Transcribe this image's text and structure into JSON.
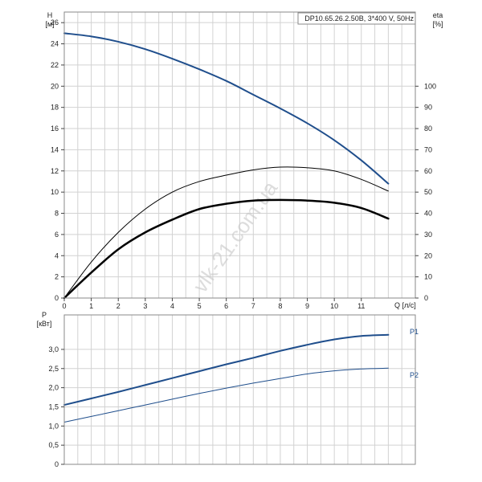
{
  "colors": {
    "blue": "#1f4e8c",
    "black": "#000000",
    "grid": "#d2d2d2"
  },
  "chart_data": [
    {
      "type": "line",
      "title": "DP10.65.26.2.50B, 3*400 V, 50Hz",
      "xlabel": "Q [л/с]",
      "x_ticks": [
        "0",
        "1",
        "2",
        "3",
        "4",
        "5",
        "6",
        "7",
        "8",
        "9",
        "10",
        "11"
      ],
      "xlim": [
        0,
        13
      ],
      "ylabel_left": {
        "name": "H",
        "unit": "[м]"
      },
      "ylim_left": [
        0,
        27
      ],
      "yticks_left": [
        "0",
        "2",
        "4",
        "6",
        "8",
        "10",
        "12",
        "14",
        "16",
        "18",
        "20",
        "22",
        "24",
        "26"
      ],
      "ylabel_right": {
        "name": "eta",
        "unit": "[%]"
      },
      "ylim_right": [
        0,
        135
      ],
      "yticks_right": [
        "0",
        "10",
        "20",
        "30",
        "40",
        "50",
        "60",
        "70",
        "80",
        "90",
        "100"
      ],
      "grid": true,
      "series": [
        {
          "axis": "left",
          "color": "#1f4e8c",
          "width": 2,
          "x": [
            0,
            1,
            2,
            3,
            4,
            5,
            6,
            7,
            8,
            9,
            10,
            11,
            12
          ],
          "y": [
            25.0,
            24.7,
            24.2,
            23.5,
            22.6,
            21.6,
            20.5,
            19.2,
            17.9,
            16.5,
            14.9,
            13.0,
            10.8
          ]
        },
        {
          "axis": "right",
          "color": "#000000",
          "width": 1,
          "x": [
            0,
            1,
            2,
            3,
            4,
            5,
            6,
            7,
            8,
            9,
            10,
            11,
            12
          ],
          "y": [
            0,
            17,
            31,
            42,
            50,
            55,
            58,
            60.5,
            61.8,
            61.5,
            60,
            56,
            50.5
          ]
        },
        {
          "axis": "right",
          "color": "#000000",
          "width": 2.5,
          "x": [
            0,
            1,
            2,
            3,
            4,
            5,
            6,
            7,
            8,
            9,
            10,
            11,
            12
          ],
          "y": [
            0,
            12,
            23,
            31,
            37,
            42,
            44.5,
            46,
            46.3,
            46,
            45,
            42.5,
            37.5
          ]
        }
      ]
    },
    {
      "type": "line",
      "title": "",
      "xlabel": "",
      "xlim": [
        0,
        13
      ],
      "ylabel": {
        "name": "P",
        "unit": "[кВт]"
      },
      "ylim": [
        0,
        3.9
      ],
      "yticks": [
        "0",
        "0,5",
        "1,0",
        "1,5",
        "2,0",
        "2,5",
        "3,0"
      ],
      "grid": true,
      "series": [
        {
          "name": "P1",
          "color": "#1f4e8c",
          "width": 2,
          "x": [
            0,
            1,
            2,
            3,
            4,
            5,
            6,
            7,
            8,
            9,
            10,
            11,
            12
          ],
          "y": [
            1.55,
            1.72,
            1.89,
            2.07,
            2.25,
            2.43,
            2.61,
            2.78,
            2.96,
            3.12,
            3.26,
            3.35,
            3.38
          ]
        },
        {
          "name": "P2",
          "color": "#1f4e8c",
          "width": 1,
          "x": [
            0,
            1,
            2,
            3,
            4,
            5,
            6,
            7,
            8,
            9,
            10,
            11,
            12
          ],
          "y": [
            1.1,
            1.25,
            1.4,
            1.55,
            1.7,
            1.85,
            1.99,
            2.12,
            2.24,
            2.36,
            2.44,
            2.49,
            2.51
          ]
        }
      ]
    }
  ],
  "watermark": "vlk-21.com.ua"
}
